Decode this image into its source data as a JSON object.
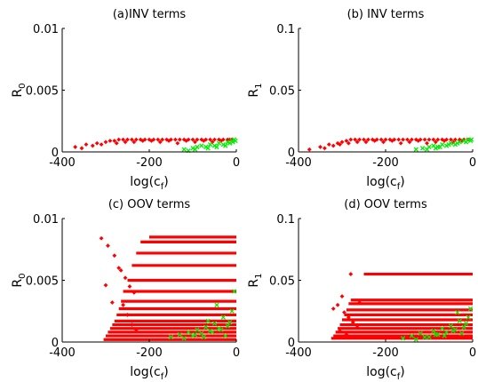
{
  "chart_data": [
    {
      "type": "scatter",
      "title": "(a)INV terms",
      "ylabel": "R",
      "ylabel_sub": "0",
      "xlabel": "log(c",
      "xlabel_sub": "f",
      "xlabel_close": ")",
      "xlim": [
        -400,
        0
      ],
      "ylim": [
        0,
        0.01
      ],
      "xticks": [
        -400,
        -200,
        0
      ],
      "xtick_labels": [
        "-400",
        "-200",
        "0"
      ],
      "yticks": [
        0,
        0.005,
        0.01
      ],
      "ytick_labels": [
        "0",
        "0.005",
        "0.01"
      ],
      "series": [
        {
          "color": "#ff0000",
          "marker": "diamond",
          "x": [
            -370,
            -345,
            -320,
            -300,
            -290,
            -280,
            -270,
            -260,
            -250,
            -240,
            -230,
            -220,
            -210,
            -200,
            -190,
            -180,
            -170,
            -160,
            -150,
            -140,
            -130,
            -120,
            -110,
            -100,
            -90,
            -80,
            -70,
            -60,
            -50,
            -40,
            -30,
            -20,
            -10,
            -355,
            -330,
            -310,
            -275,
            -255,
            -235,
            -215,
            -195,
            -175,
            -155,
            -135,
            -115,
            -95,
            -75,
            -55,
            -35,
            -15
          ],
          "y": [
            0.0004,
            0.0006,
            0.0007,
            0.0008,
            0.0009,
            0.0009,
            0.001,
            0.001,
            0.001,
            0.001,
            0.001,
            0.001,
            0.001,
            0.001,
            0.001,
            0.001,
            0.001,
            0.001,
            0.001,
            0.001,
            0.001,
            0.001,
            0.001,
            0.001,
            0.001,
            0.001,
            0.001,
            0.001,
            0.001,
            0.001,
            0.001,
            0.001,
            0.001,
            0.0003,
            0.0005,
            0.0006,
            0.0007,
            0.0008,
            0.0008,
            0.0009,
            0.0009,
            0.0008,
            0.0009,
            0.0007,
            0.0009,
            0.0008,
            0.0009,
            0.0008,
            0.0009,
            0.001
          ]
        },
        {
          "color": "#00ee00",
          "marker": "x",
          "x": [
            -120,
            -100,
            -90,
            -80,
            -70,
            -60,
            -50,
            -40,
            -30,
            -20,
            -10,
            -5,
            -110,
            -95,
            -65,
            -45,
            -25,
            -15,
            -8,
            -2
          ],
          "y": [
            0.0002,
            0.0003,
            0.0004,
            0.0005,
            0.0004,
            0.0006,
            0.0005,
            0.0007,
            0.0006,
            0.0008,
            0.0009,
            0.001,
            0.0001,
            0.0002,
            0.0003,
            0.0004,
            0.0005,
            0.0007,
            0.0008,
            0.0009
          ]
        }
      ]
    },
    {
      "type": "scatter",
      "title": "(b) INV terms",
      "ylabel": "R",
      "ylabel_sub": "1",
      "xlabel": "log(c",
      "xlabel_sub": "f",
      "xlabel_close": ")",
      "xlim": [
        -400,
        0
      ],
      "ylim": [
        0,
        0.1
      ],
      "xticks": [
        -400,
        -200,
        0
      ],
      "xtick_labels": [
        "-400",
        "-200",
        "0"
      ],
      "yticks": [
        0,
        0.05,
        0.1
      ],
      "ytick_labels": [
        "0",
        "0.05",
        "0.1"
      ],
      "series": [
        {
          "color": "#ff0000",
          "marker": "diamond",
          "x": [
            -375,
            -350,
            -330,
            -310,
            -300,
            -290,
            -280,
            -270,
            -260,
            -250,
            -240,
            -230,
            -220,
            -210,
            -200,
            -190,
            -180,
            -170,
            -160,
            -150,
            -140,
            -130,
            -120,
            -110,
            -100,
            -90,
            -80,
            -70,
            -60,
            -50,
            -40,
            -30,
            -20,
            -10,
            -340,
            -320,
            -305,
            -285,
            -265,
            -245,
            -225,
            -205,
            -185,
            -165,
            -145,
            -125,
            -105,
            -85,
            -65,
            -45,
            -25
          ],
          "y": [
            0.002,
            0.004,
            0.006,
            0.007,
            0.008,
            0.009,
            0.01,
            0.01,
            0.01,
            0.01,
            0.01,
            0.01,
            0.01,
            0.01,
            0.01,
            0.01,
            0.01,
            0.01,
            0.01,
            0.01,
            0.01,
            0.01,
            0.01,
            0.01,
            0.01,
            0.01,
            0.01,
            0.01,
            0.01,
            0.01,
            0.01,
            0.01,
            0.01,
            0.01,
            0.003,
            0.005,
            0.006,
            0.007,
            0.008,
            0.008,
            0.009,
            0.008,
            0.009,
            0.007,
            0.008,
            0.009,
            0.007,
            0.008,
            0.009,
            0.008,
            0.009
          ]
        },
        {
          "color": "#00ee00",
          "marker": "x",
          "x": [
            -130,
            -115,
            -100,
            -90,
            -80,
            -70,
            -60,
            -50,
            -40,
            -30,
            -20,
            -10,
            -5,
            -105,
            -85,
            -75,
            -55,
            -35,
            -15,
            -3
          ],
          "y": [
            0.002,
            0.003,
            0.004,
            0.005,
            0.004,
            0.006,
            0.005,
            0.007,
            0.006,
            0.008,
            0.009,
            0.01,
            0.009,
            0.002,
            0.003,
            0.004,
            0.006,
            0.007,
            0.008,
            0.01
          ]
        }
      ]
    },
    {
      "type": "scatter",
      "title": "(c) OOV terms",
      "ylabel": "R",
      "ylabel_sub": "0",
      "xlabel": "log(c",
      "xlabel_sub": "f",
      "xlabel_close": ")",
      "xlim": [
        -400,
        0
      ],
      "ylim": [
        0,
        0.01
      ],
      "xticks": [
        -400,
        -200,
        0
      ],
      "xtick_labels": [
        "-400",
        "-200",
        "0"
      ],
      "yticks": [
        0,
        0.005,
        0.01
      ],
      "ytick_labels": [
        "0",
        "0.005",
        "0.01"
      ],
      "band_series": {
        "color": "#ff0000",
        "bands": [
          {
            "y": 0.0085,
            "x0": -200,
            "x1": 0
          },
          {
            "y": 0.0081,
            "x0": -220,
            "x1": 0
          },
          {
            "y": 0.0072,
            "x0": -230,
            "x1": 0
          },
          {
            "y": 0.0062,
            "x0": -240,
            "x1": 0
          },
          {
            "y": 0.005,
            "x0": -250,
            "x1": 0
          },
          {
            "y": 0.0041,
            "x0": -260,
            "x1": 0
          },
          {
            "y": 0.0033,
            "x0": -265,
            "x1": 0
          },
          {
            "y": 0.0027,
            "x0": -270,
            "x1": 0
          },
          {
            "y": 0.0022,
            "x0": -275,
            "x1": 0
          },
          {
            "y": 0.0017,
            "x0": -280,
            "x1": 0
          },
          {
            "y": 0.0014,
            "x0": -285,
            "x1": 0
          },
          {
            "y": 0.0011,
            "x0": -290,
            "x1": 0
          },
          {
            "y": 0.0008,
            "x0": -295,
            "x1": 0
          },
          {
            "y": 0.0005,
            "x0": -300,
            "x1": 0
          },
          {
            "y": 0.0002,
            "x0": -305,
            "x1": 0
          }
        ]
      },
      "series": [
        {
          "color": "#ff0000",
          "marker": "diamond",
          "x": [
            -310,
            -295,
            -280,
            -270,
            -255,
            -245,
            -235,
            -300,
            -285,
            -260,
            -250,
            -240,
            -230,
            -265
          ],
          "y": [
            0.0084,
            0.0078,
            0.007,
            0.006,
            0.0052,
            0.0045,
            0.004,
            0.0046,
            0.0032,
            0.003,
            0.0022,
            0.0014,
            0.001,
            0.0058
          ]
        },
        {
          "color": "#00ee00",
          "marker": "x",
          "x": [
            -150,
            -130,
            -110,
            -100,
            -90,
            -80,
            -70,
            -60,
            -50,
            -40,
            -30,
            -20,
            -10,
            -5,
            -120,
            -95,
            -75,
            -55,
            -35,
            -15,
            -45,
            -25,
            -65
          ],
          "y": [
            0.0004,
            0.0006,
            0.0008,
            0.0005,
            0.001,
            0.0007,
            0.0012,
            0.0009,
            0.0015,
            0.0011,
            0.002,
            0.0013,
            0.0025,
            0.0041,
            0.0003,
            0.0006,
            0.0004,
            0.0008,
            0.001,
            0.0016,
            0.003,
            0.0005,
            0.0017
          ]
        }
      ]
    },
    {
      "type": "scatter",
      "title": "(d) OOV terms",
      "ylabel": "R",
      "ylabel_sub": "1",
      "xlabel": "log(c",
      "xlabel_sub": "f",
      "xlabel_close": ")",
      "xlim": [
        -400,
        0
      ],
      "ylim": [
        0,
        0.1
      ],
      "xticks": [
        -400,
        -200,
        0
      ],
      "xtick_labels": [
        "-400",
        "-200",
        "0"
      ],
      "yticks": [
        0,
        0.05,
        0.1
      ],
      "ytick_labels": [
        "0",
        "0.05",
        "0.1"
      ],
      "band_series": {
        "color": "#ff0000",
        "bands": [
          {
            "y": 0.055,
            "x0": -250,
            "x1": 0
          },
          {
            "y": 0.034,
            "x0": -280,
            "x1": 0
          },
          {
            "y": 0.031,
            "x0": -285,
            "x1": 0
          },
          {
            "y": 0.026,
            "x0": -290,
            "x1": 0
          },
          {
            "y": 0.022,
            "x0": -295,
            "x1": 0
          },
          {
            "y": 0.018,
            "x0": -300,
            "x1": 0
          },
          {
            "y": 0.014,
            "x0": -305,
            "x1": 0
          },
          {
            "y": 0.011,
            "x0": -310,
            "x1": 0
          },
          {
            "y": 0.008,
            "x0": -315,
            "x1": 0
          },
          {
            "y": 0.005,
            "x0": -320,
            "x1": 0
          },
          {
            "y": 0.003,
            "x0": -325,
            "x1": 0
          }
        ]
      },
      "series": [
        {
          "color": "#ff0000",
          "marker": "diamond",
          "x": [
            -280,
            -300,
            -310,
            -320,
            -295,
            -285,
            -275,
            -265,
            -305,
            -290,
            -270,
            -260
          ],
          "y": [
            0.055,
            0.037,
            0.03,
            0.027,
            0.024,
            0.02,
            0.016,
            0.012,
            0.009,
            0.006,
            0.004,
            0.032
          ]
        },
        {
          "color": "#00ee00",
          "marker": "x",
          "x": [
            -160,
            -140,
            -120,
            -100,
            -90,
            -80,
            -70,
            -60,
            -50,
            -40,
            -30,
            -20,
            -10,
            -5,
            -130,
            -110,
            -85,
            -65,
            -45,
            -25,
            -15,
            -35
          ],
          "y": [
            0.003,
            0.005,
            0.007,
            0.004,
            0.009,
            0.006,
            0.011,
            0.008,
            0.013,
            0.01,
            0.017,
            0.012,
            0.02,
            0.027,
            0.002,
            0.004,
            0.006,
            0.005,
            0.009,
            0.007,
            0.015,
            0.024
          ]
        }
      ]
    }
  ]
}
